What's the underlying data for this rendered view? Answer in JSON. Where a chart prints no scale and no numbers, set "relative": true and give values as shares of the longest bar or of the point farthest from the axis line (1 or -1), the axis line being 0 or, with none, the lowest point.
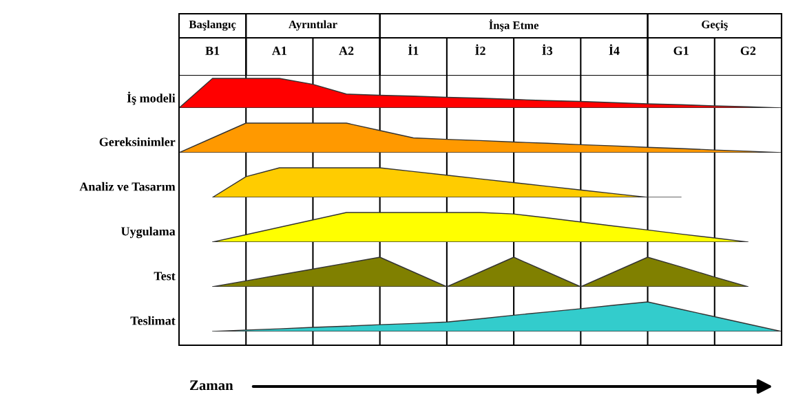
{
  "chart_data": [
    {
      "type": "area",
      "relative": true,
      "ylabel": "İş modeli",
      "color": "#ff0000",
      "tick_labels": "x",
      "categories": [
        null,
        "B1",
        null,
        "A1",
        null,
        "A2",
        null,
        "İ1",
        null,
        "İ2",
        null,
        "İ3",
        null,
        "İ4",
        null,
        "G1",
        null,
        "G2",
        null
      ],
      "values": [
        0,
        1,
        1,
        1,
        0.8,
        0.47,
        0.43,
        0.4,
        0.36,
        0.33,
        0.29,
        0.25,
        0.22,
        0.18,
        0.14,
        0.11,
        0.07,
        0.04,
        0
      ],
      "grid": "x",
      "annotations": [
        "Başlangıç",
        "Ayrıntılar",
        "İnşa Etme",
        "Geçiş"
      ]
    },
    {
      "type": "area",
      "relative": true,
      "ylabel": "Gereksinimler",
      "color": "#ff9900",
      "tick_labels": false,
      "grid": "x",
      "categories": [
        null,
        null,
        null,
        null,
        null,
        null,
        null,
        null,
        null,
        null,
        null,
        null,
        null,
        null,
        null,
        null,
        null,
        null,
        null
      ],
      "values": [
        0,
        0.5,
        1,
        1,
        1,
        1,
        0.75,
        0.5,
        0.45,
        0.41,
        0.36,
        0.32,
        0.27,
        0.23,
        0.18,
        0.14,
        0.09,
        0.05,
        0
      ]
    },
    {
      "type": "area",
      "relative": true,
      "ylabel": "Analiz ve Tasarım",
      "color": "#ffcc00",
      "tick_labels": false,
      "grid": "x",
      "categories": [
        null,
        null,
        null,
        null,
        null,
        null,
        null,
        null,
        null,
        null,
        null,
        null,
        null,
        null,
        null,
        null,
        null,
        null,
        null
      ],
      "values": [
        null,
        0,
        0.7,
        1,
        1,
        1,
        1,
        0.875,
        0.75,
        0.625,
        0.5,
        0.375,
        0.25,
        0.125,
        0,
        0,
        null,
        null,
        null
      ]
    },
    {
      "type": "area",
      "relative": true,
      "ylabel": "Uygulama",
      "color": "#ffff00",
      "tick_labels": false,
      "grid": "x",
      "categories": [
        null,
        null,
        null,
        null,
        null,
        null,
        null,
        null,
        null,
        null,
        null,
        null,
        null,
        null,
        null,
        null,
        null,
        null,
        null
      ],
      "values": [
        null,
        0,
        0.25,
        0.5,
        0.75,
        1,
        1,
        1,
        1,
        1,
        0.95,
        0.82,
        0.68,
        0.54,
        0.41,
        0.27,
        0.14,
        0,
        null
      ]
    },
    {
      "type": "area",
      "relative": true,
      "ylabel": "Test",
      "color": "#808000",
      "tick_labels": false,
      "grid": "x",
      "categories": [
        null,
        null,
        null,
        null,
        null,
        null,
        null,
        null,
        null,
        null,
        null,
        null,
        null,
        null,
        null,
        null,
        null,
        null,
        null
      ],
      "values": [
        null,
        0,
        0.2,
        0.4,
        0.6,
        0.8,
        1,
        0.5,
        0,
        0.5,
        1,
        0.5,
        0,
        0.5,
        1,
        0.67,
        0.33,
        0,
        null
      ]
    },
    {
      "type": "area",
      "relative": true,
      "ylabel": "Teslimat",
      "xlabel": "Zaman",
      "color": "#33cccc",
      "tick_labels": false,
      "grid": "x",
      "categories": [
        null,
        null,
        null,
        null,
        null,
        null,
        null,
        null,
        null,
        null,
        null,
        null,
        null,
        null,
        null,
        null,
        null,
        null,
        null
      ],
      "values": [
        null,
        0,
        0.05,
        0.09,
        0.14,
        0.18,
        0.23,
        0.27,
        0.32,
        0.43,
        0.55,
        0.66,
        0.77,
        0.89,
        1,
        0.75,
        0.5,
        0.25,
        0
      ]
    }
  ]
}
